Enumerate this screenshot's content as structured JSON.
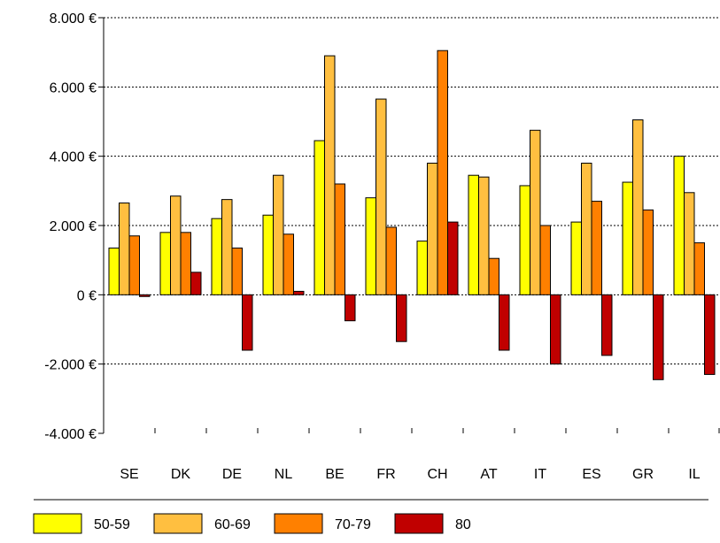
{
  "chart_data": {
    "type": "bar",
    "categories": [
      "SE",
      "DK",
      "DE",
      "NL",
      "BE",
      "FR",
      "CH",
      "AT",
      "IT",
      "ES",
      "GR",
      "IL"
    ],
    "series": [
      {
        "name": "50-59",
        "color": "#ffff00",
        "values": [
          1350,
          1800,
          2200,
          2300,
          4450,
          2800,
          1550,
          3450,
          3150,
          2100,
          3250,
          4000
        ]
      },
      {
        "name": "60-69",
        "color": "#ffbf40",
        "values": [
          2650,
          2850,
          2750,
          3450,
          6900,
          5650,
          3800,
          3400,
          4750,
          3800,
          5050,
          2950
        ]
      },
      {
        "name": "70-79",
        "color": "#ff8000",
        "values": [
          1700,
          1800,
          1350,
          1750,
          3200,
          1950,
          7050,
          1050,
          2000,
          2700,
          2450,
          1500
        ]
      },
      {
        "name": "80",
        "color": "#c00000",
        "values": [
          -50,
          650,
          -1600,
          100,
          -750,
          -1350,
          2100,
          -1600,
          -2000,
          -1750,
          -2450,
          -2300
        ]
      }
    ],
    "ylim": [
      -4000,
      8000
    ],
    "yticks": [
      8000,
      6000,
      4000,
      2000,
      0,
      -2000,
      -4000
    ],
    "ytick_labels": [
      "8.000 €",
      "6.000 €",
      "4.000 €",
      "2.000 €",
      "0 €",
      "-2.000 €",
      "-4.000 €"
    ],
    "grid": "horizontal dotted",
    "legend_position": "bottom"
  }
}
